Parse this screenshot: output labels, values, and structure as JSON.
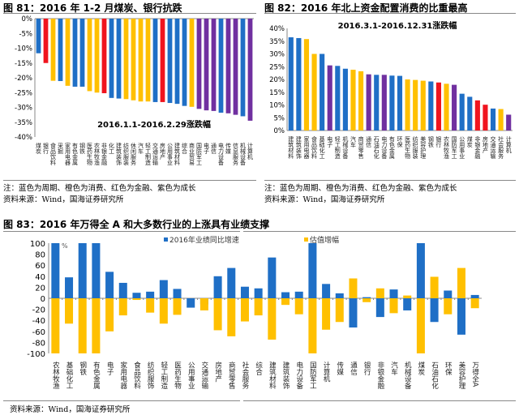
{
  "colors": {
    "blue": "#1f6fc6",
    "yellow": "#ffc000",
    "red": "#f0141e",
    "purple": "#7030a0"
  },
  "fig81": {
    "title": "图 81：2016 年 1-2 月煤炭、银行抗跌",
    "note": "注：蓝色为周期、橙色为消费、红色为金融、紫色为成长",
    "source": "资料来源：Wind，国海证券研究所"
  },
  "fig82": {
    "title": "图 82：2016 年北上资金配置消费的比重最高",
    "note": "注：蓝色为周期、橙色为消费、红色为金融、紫色为成长",
    "source": "资料来源：Wind，国海证券研究所"
  },
  "fig83": {
    "title": "图 83：2016 年万得全 A 和大多数行业的上涨具有业绩支撑",
    "source": "资料来源：Wind，国海证券研究所"
  },
  "chart_data": [
    {
      "type": "bar",
      "subtitle": "2016.1.1-2016.2.29涨跌幅",
      "ylim": [
        -40,
        0
      ],
      "yticks": [
        "0%",
        "-5%",
        "-10%",
        "-15%",
        "-20%",
        "-25%",
        "-30%",
        "-35%",
        "-40%"
      ],
      "categories": [
        "煤炭",
        "银行",
        "食品饮料",
        "采掘",
        "家用电器",
        "有色金属",
        "钢铁",
        "医药生物",
        "农林牧渔",
        "非银金融",
        "化工",
        "建筑装饰",
        "纺织服装",
        "休闲服务",
        "汽车",
        "轻工制造",
        "交通运输",
        "房地产",
        "公用事业",
        "建筑材料",
        "综合",
        "商业贸易",
        "国防军工",
        "电子",
        "通信",
        "电力设备",
        "传媒",
        "信息服务",
        "机械设备",
        "计算机"
      ],
      "values": [
        -11.7,
        -15,
        -21,
        -21.1,
        -22.7,
        -23,
        -23,
        -24.5,
        -25,
        -25.2,
        -26.8,
        -27,
        -27.2,
        -27.6,
        -28,
        -28,
        -28.2,
        -28.2,
        -28.5,
        -28.8,
        -29.5,
        -29.8,
        -30.5,
        -31,
        -31.2,
        -31.8,
        -32,
        -32.5,
        -33,
        -34.5
      ],
      "color_groups": [
        "blue",
        "red",
        "yellow",
        "blue",
        "yellow",
        "blue",
        "blue",
        "yellow",
        "yellow",
        "red",
        "blue",
        "blue",
        "yellow",
        "yellow",
        "yellow",
        "yellow",
        "blue",
        "red",
        "blue",
        "blue",
        "blue",
        "yellow",
        "purple",
        "purple",
        "purple",
        "blue",
        "purple",
        "purple",
        "blue",
        "purple"
      ]
    },
    {
      "type": "bar",
      "subtitle": "2016.3.1-2016.12.31涨跌幅",
      "ylim": [
        0,
        40
      ],
      "yticks": [
        "40%",
        "35%",
        "30%",
        "25%",
        "20%",
        "15%",
        "10%",
        "5%",
        "0%"
      ],
      "categories": [
        "建筑材料",
        "建筑装饰",
        "家用电器",
        "食品饮料",
        "基础化工",
        "电子",
        "轻工制造",
        "机械设备",
        "汽车",
        "商贸零售",
        "通信",
        "石油石化",
        "电力设备",
        "有色金属",
        "环保",
        "医药生物",
        "纺织服装",
        "美容护理",
        "钢铁",
        "银行",
        "农林牧渔",
        "国防军工",
        "公用事业",
        "煤炭",
        "非银金融",
        "房地产",
        "交通运输",
        "社会服务",
        "计算机"
      ],
      "values": [
        36.5,
        36.2,
        35.8,
        30,
        30,
        25.5,
        25.3,
        24.2,
        23.8,
        23.2,
        22,
        21.8,
        21.8,
        21.5,
        21.4,
        20,
        19.8,
        19.5,
        19.2,
        18.8,
        18.3,
        17.9,
        14.4,
        13.2,
        11.8,
        10.1,
        8.6,
        8.4,
        6.2
      ],
      "color_groups": [
        "blue",
        "blue",
        "yellow",
        "yellow",
        "blue",
        "purple",
        "blue",
        "blue",
        "yellow",
        "yellow",
        "purple",
        "blue",
        "purple",
        "blue",
        "blue",
        "yellow",
        "yellow",
        "yellow",
        "blue",
        "red",
        "yellow",
        "purple",
        "blue",
        "blue",
        "red",
        "red",
        "blue",
        "yellow",
        "purple"
      ]
    },
    {
      "type": "bar",
      "unit": "%",
      "ylim": [
        -100,
        100
      ],
      "yticks": [
        "100",
        "80",
        "60",
        "40",
        "20",
        "0",
        "-20",
        "-40",
        "-60",
        "-80",
        "-100"
      ],
      "legend_position": "top",
      "categories": [
        "农林牧渔",
        "基础化工",
        "钢铁",
        "有色金属",
        "电子",
        "家用电器",
        "食品饮料",
        "纺织服饰",
        "轻工制造",
        "医药生物",
        "公用事业",
        "交通运输",
        "房地产",
        "商贸零售",
        "社会服务",
        "综合",
        "建筑材料",
        "建筑装饰",
        "电力设备",
        "国防军工",
        "计算机",
        "传媒",
        "通信",
        "银行",
        "非银金融",
        "汽车",
        "机械设备",
        "煤炭",
        "石油石化",
        "环保",
        "美容护理",
        "万得全A"
      ],
      "series": [
        {
          "name": "2016年业绩同比增速",
          "color": "#1f6fc6",
          "values": [
            100,
            38,
            100,
            100,
            48,
            28,
            10,
            12,
            33,
            17,
            -17,
            -11,
            40,
            55,
            21,
            18,
            74,
            11,
            12,
            100,
            26,
            9,
            -53,
            2,
            -34,
            16,
            -22,
            100,
            -43,
            14,
            -66,
            6
          ]
        },
        {
          "name": "估值增幅",
          "color": "#ffc000",
          "values": [
            -100,
            -46,
            -100,
            -100,
            -60,
            -31,
            -3,
            -26,
            -46,
            -30,
            0,
            -22,
            -58,
            -69,
            -42,
            -31,
            -75,
            -12,
            -29,
            -100,
            -57,
            -43,
            36,
            -7,
            18,
            -27,
            5,
            -100,
            39,
            -29,
            55,
            -18
          ]
        }
      ]
    }
  ]
}
